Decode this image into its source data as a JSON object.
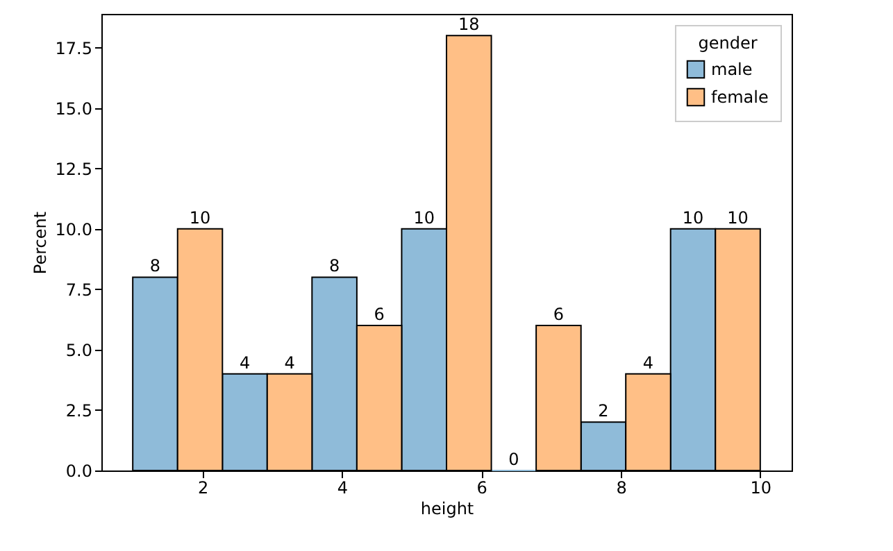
{
  "chart_data": {
    "type": "histogram",
    "xlabel": "height",
    "ylabel": "Percent",
    "legend_title": "gender",
    "bins": [
      1,
      2.286,
      3.571,
      4.857,
      6.143,
      7.429,
      8.714,
      10
    ],
    "series": [
      {
        "name": "male",
        "color": "#8fbbd9",
        "values": [
          8,
          4,
          8,
          10,
          0,
          2,
          10
        ]
      },
      {
        "name": "female",
        "color": "#ffbf86",
        "values": [
          10,
          4,
          6,
          18,
          6,
          4,
          10
        ]
      }
    ],
    "xlim": [
      0.55,
      10.45
    ],
    "xticks": [
      2,
      4,
      6,
      8,
      10
    ],
    "ylim": [
      0,
      18.9
    ],
    "yticks": [
      {
        "value": 0,
        "label": "0.0"
      },
      {
        "value": 2.5,
        "label": "2.5"
      },
      {
        "value": 5,
        "label": "5.0"
      },
      {
        "value": 7.5,
        "label": "7.5"
      },
      {
        "value": 10,
        "label": "10.0"
      },
      {
        "value": 12.5,
        "label": "12.5"
      },
      {
        "value": 15,
        "label": "15.0"
      },
      {
        "value": 17.5,
        "label": "17.5"
      }
    ],
    "data_labels": true,
    "grid": false,
    "legend": "top right"
  }
}
